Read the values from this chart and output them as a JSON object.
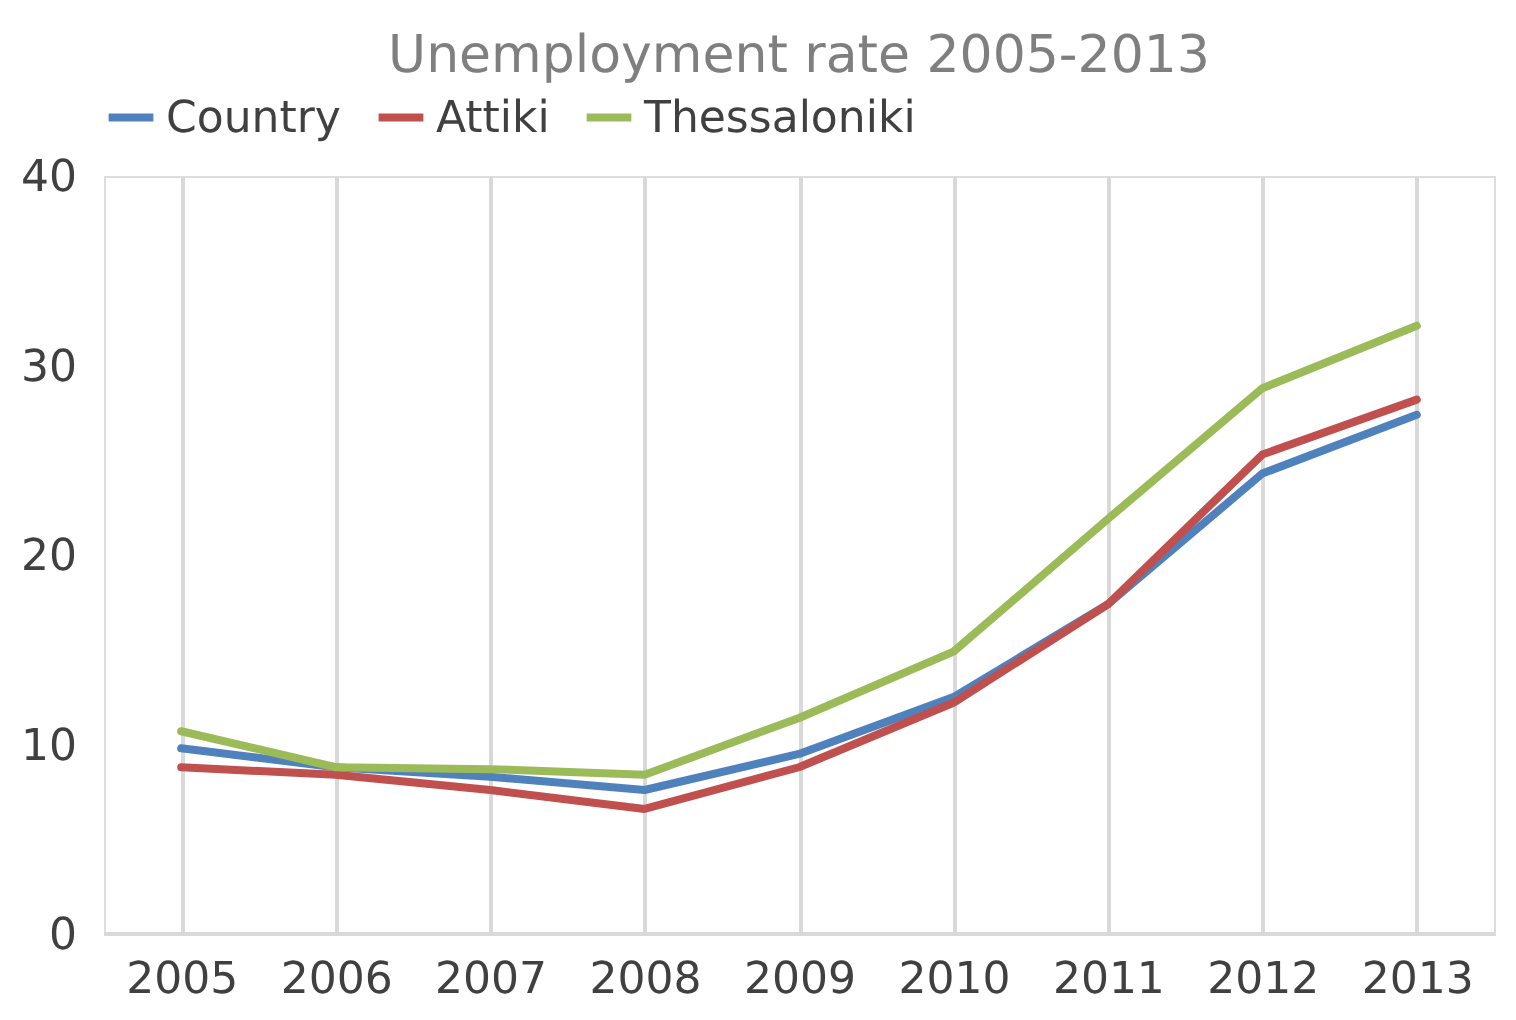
{
  "chart_data": {
    "type": "line",
    "title": "Unemployment rate 2005-2013",
    "categories": [
      "2005",
      "2006",
      "2007",
      "2008",
      "2009",
      "2010",
      "2011",
      "2012",
      "2013"
    ],
    "series": [
      {
        "name": "Country",
        "color": "#4f81bd",
        "values": [
          9.8,
          8.8,
          8.3,
          7.6,
          9.5,
          12.5,
          17.4,
          24.3,
          27.4
        ]
      },
      {
        "name": "Attiki",
        "color": "#c0504d",
        "values": [
          8.8,
          8.4,
          7.6,
          6.6,
          8.8,
          12.2,
          17.4,
          25.3,
          28.2
        ]
      },
      {
        "name": "Thessaloniki",
        "color": "#9bbb59",
        "values": [
          10.7,
          8.8,
          8.7,
          8.4,
          11.4,
          14.9,
          21.9,
          28.8,
          32.1
        ]
      }
    ],
    "ylim": [
      0,
      40
    ],
    "yticks": [
      0,
      10,
      20,
      30,
      40
    ],
    "grid": "x",
    "legend": "top",
    "marker": "none",
    "line_style": "solid"
  }
}
